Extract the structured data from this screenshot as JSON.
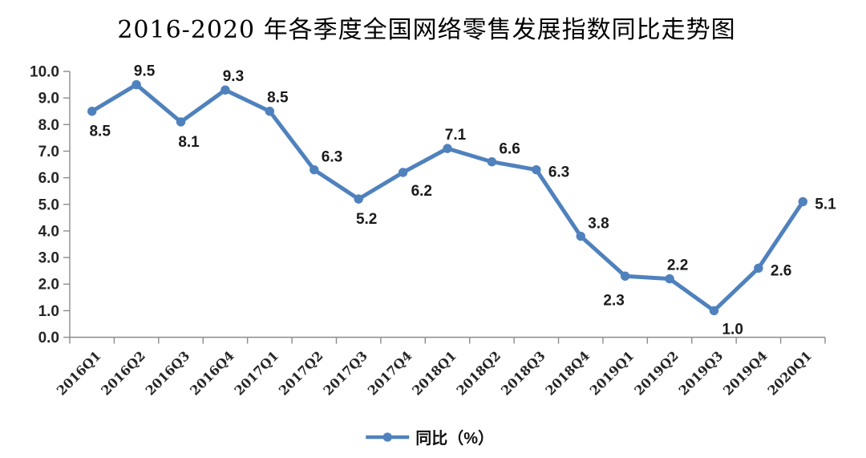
{
  "title": "2016-2020 年各季度全国网络零售发展指数同比走势图",
  "legend": {
    "label": "同比（%）"
  },
  "colors": {
    "line": "#4F81BD",
    "axis": "#8C8C8C",
    "tick_label": "#262626",
    "data_label": "#1a1a1a"
  },
  "chart_data": {
    "type": "line",
    "title": "2016-2020 年各季度全国网络零售发展指数同比走势图",
    "categories": [
      "2016Q1",
      "2016Q2",
      "2016Q3",
      "2016Q4",
      "2017Q1",
      "2017Q2",
      "2017Q3",
      "2017Q4",
      "2018Q1",
      "2018Q2",
      "2018Q3",
      "2018Q4",
      "2019Q1",
      "2019Q2",
      "2019Q3",
      "2019Q4",
      "2020Q1"
    ],
    "series": [
      {
        "name": "同比（%）",
        "values": [
          8.5,
          9.5,
          8.1,
          9.3,
          8.5,
          6.3,
          5.2,
          6.2,
          7.1,
          6.6,
          6.3,
          3.8,
          2.3,
          2.2,
          1.0,
          2.6,
          5.1
        ]
      }
    ],
    "xlabel": "",
    "ylabel": "",
    "ylim": [
      0,
      10
    ],
    "ytick_step": 1,
    "ytick_decimals": 1,
    "xtick_rotation": -45,
    "grid": false,
    "data_labels": true,
    "label_positions": [
      "below",
      "above",
      "below",
      "above",
      "above",
      "above-right",
      "below",
      "below-right",
      "above",
      "above-right",
      "right",
      "above-right",
      "below-left",
      "above",
      "below-right",
      "right",
      "right"
    ],
    "marker": "circle",
    "legend_position": "bottom-center"
  }
}
